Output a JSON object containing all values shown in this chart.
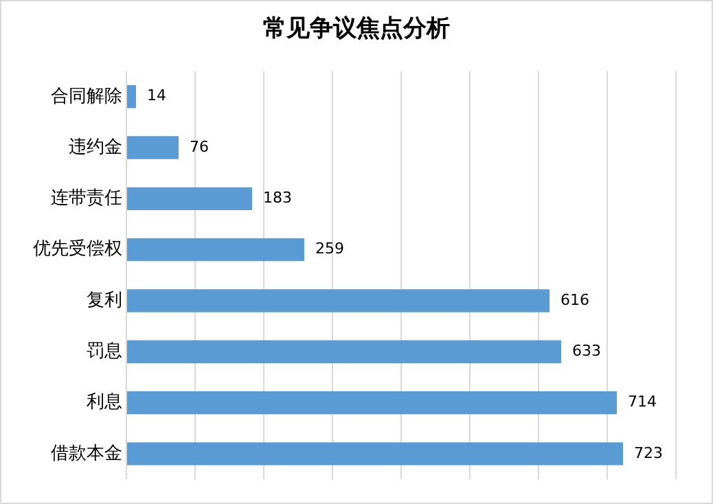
{
  "chart_data": {
    "type": "bar",
    "orientation": "horizontal",
    "title": "常见争议焦点分析",
    "categories": [
      "合同解除",
      "违约金",
      "连带责任",
      "优先受偿权",
      "复利",
      "罚息",
      "利息",
      "借款本金"
    ],
    "values": [
      14,
      76,
      183,
      259,
      616,
      633,
      714,
      723
    ],
    "color": "#5b9bd5",
    "grid": "x",
    "tick_labels": "y",
    "data_labels": true,
    "legend": false
  }
}
